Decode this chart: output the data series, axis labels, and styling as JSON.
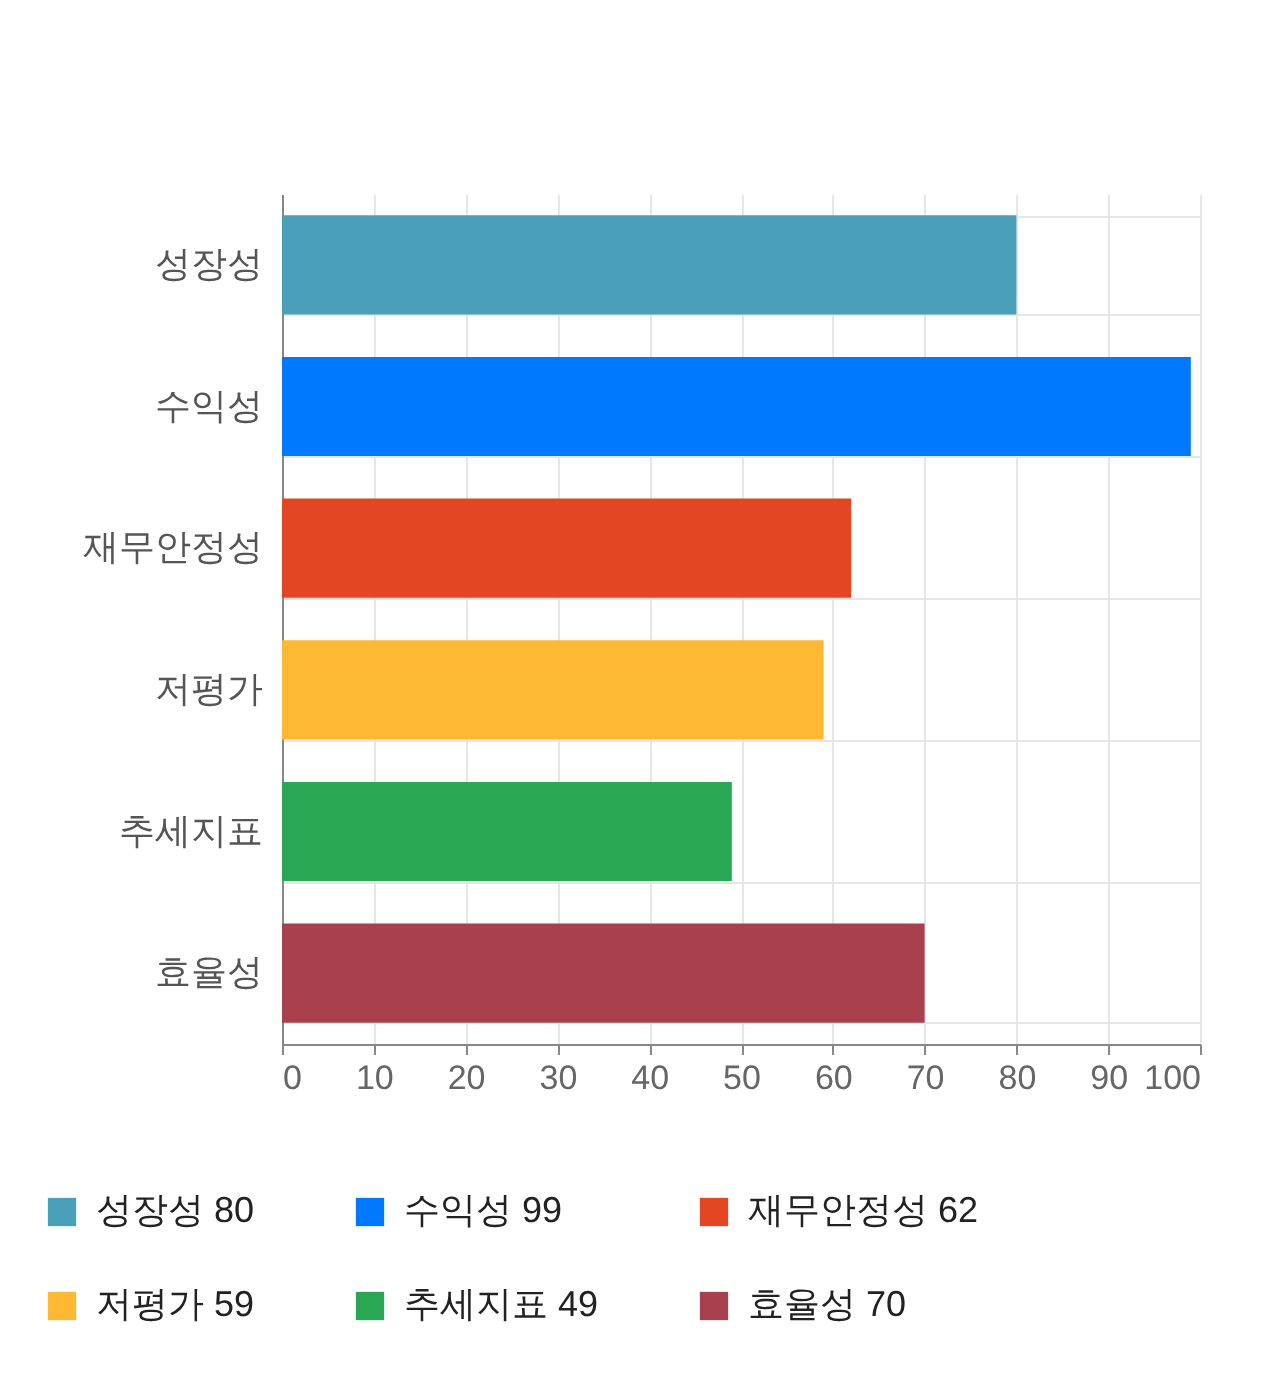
{
  "chart_data": {
    "type": "bar",
    "orientation": "horizontal",
    "categories": [
      "성장성",
      "수익성",
      "재무안정성",
      "저평가",
      "추세지표",
      "효율성"
    ],
    "series": [
      {
        "name": "성장성 80",
        "color": "#4aa0b9",
        "values": [
          80,
          null,
          null,
          null,
          null,
          null
        ]
      },
      {
        "name": "수익성 99",
        "color": "#0078ff",
        "values": [
          null,
          99,
          null,
          null,
          null,
          null
        ]
      },
      {
        "name": "재무안정성 62",
        "color": "#e24623",
        "values": [
          null,
          null,
          62,
          null,
          null,
          null
        ]
      },
      {
        "name": "저평가 59",
        "color": "#ffb833",
        "values": [
          null,
          null,
          null,
          59,
          null,
          null
        ]
      },
      {
        "name": "추세지표 49",
        "color": "#2aa755",
        "values": [
          null,
          null,
          null,
          null,
          49,
          null
        ]
      },
      {
        "name": "효율성 70",
        "color": "#a8404e",
        "values": [
          null,
          null,
          null,
          null,
          null,
          70
        ]
      }
    ],
    "xlim": [
      0,
      100
    ],
    "xticks": [
      0,
      10,
      20,
      30,
      40,
      50,
      60,
      70,
      80,
      90,
      100
    ],
    "grid": true,
    "legend": "bottom"
  }
}
